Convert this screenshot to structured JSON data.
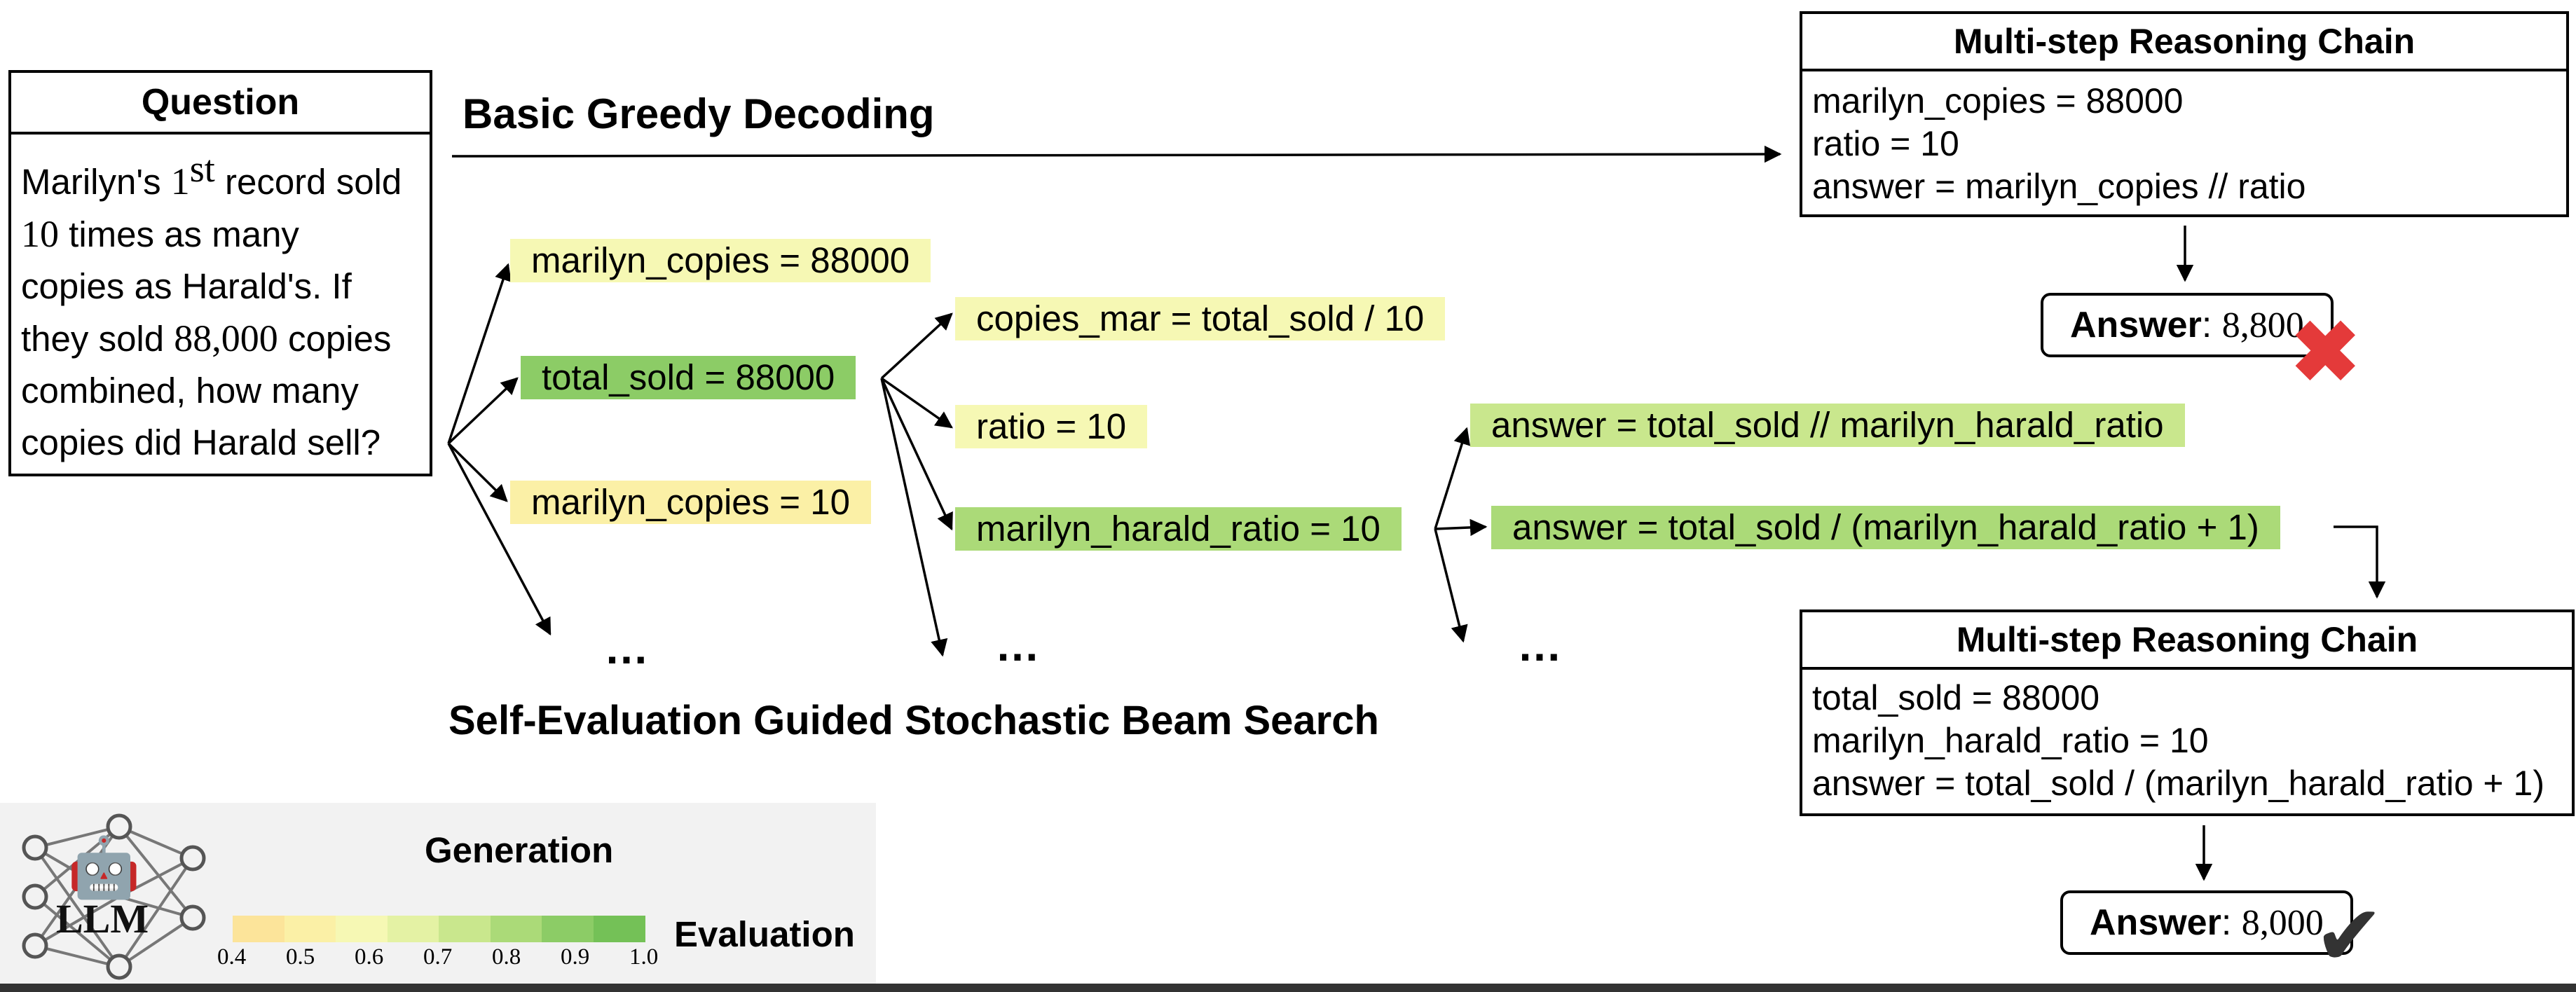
{
  "question": {
    "title": "Question",
    "lines": [
      {
        "before": "Marilyn's ",
        "num": "1",
        "sup": "st",
        "after": " record sold"
      },
      {
        "before": "",
        "num": "10",
        "sup": "",
        "after": " times as many"
      },
      {
        "before": "copies as Harald's. If",
        "num": "",
        "sup": "",
        "after": ""
      },
      {
        "before": "they sold ",
        "num": "88,000",
        "sup": "",
        "after": " copies"
      },
      {
        "before": "combined, how many",
        "num": "",
        "sup": "",
        "after": ""
      },
      {
        "before": "copies did Harald sell?",
        "num": "",
        "sup": "",
        "after": ""
      }
    ]
  },
  "greedy": {
    "title": "Basic Greedy Decoding",
    "chain_title": "Multi-step Reasoning Chain",
    "chain_lines": [
      "marilyn_copies = 88000",
      "ratio = 10",
      "answer = marilyn_copies // ratio"
    ],
    "answer_label": "Answer",
    "answer_value": "8,800",
    "result_icon": "cross-icon"
  },
  "beam": {
    "title": "Self-Evaluation Guided Stochastic Beam Search",
    "steps": {
      "n1": {
        "text": "marilyn_copies = 88000",
        "score": 0.6
      },
      "n2": {
        "text": "total_sold = 88000",
        "score": 0.95
      },
      "n3": {
        "text": "marilyn_copies = 10",
        "score": 0.45
      },
      "n4": {
        "text": "copies_mar = total_sold / 10",
        "score": 0.6
      },
      "n5": {
        "text": "ratio = 10",
        "score": 0.6
      },
      "n6": {
        "text": "marilyn_harald_ratio = 10",
        "score": 0.8
      },
      "n7": {
        "text": "answer = total_sold // marilyn_harald_ratio",
        "score": 0.75
      },
      "n8": {
        "text": "answer = total_sold / (marilyn_harald_ratio + 1)",
        "score": 0.85
      }
    },
    "ellipsis": "…",
    "chain_title": "Multi-step Reasoning Chain",
    "chain_lines": [
      "total_sold = 88000",
      "marilyn_harald_ratio = 10",
      "answer = total_sold / (marilyn_harald_ratio + 1)"
    ],
    "answer_label": "Answer",
    "answer_value": "8,000",
    "result_icon": "check-icon"
  },
  "legend": {
    "llm_label": "LLM",
    "generation_label": "Generation",
    "evaluation_label": "Evaluation",
    "scale_ticks": [
      "0.4",
      "0.5",
      "0.6",
      "0.7",
      "0.8",
      "0.9",
      "1.0"
    ],
    "scale_colors": [
      "#fce49a",
      "#fbf0a6",
      "#f6f8b4",
      "#e4f2a4",
      "#c9e78d",
      "#abda78",
      "#8ccc66",
      "#74c157"
    ],
    "icons": [
      "robot-icon",
      "network-icon"
    ]
  },
  "colors": {
    "score_scale": [
      "#fce49a",
      "#fbf0a6",
      "#f6f8b4",
      "#e4f2a4",
      "#c9e78d",
      "#abda78",
      "#8ccc66",
      "#74c157"
    ],
    "cross": "#e43a3a",
    "check": "#333333"
  }
}
